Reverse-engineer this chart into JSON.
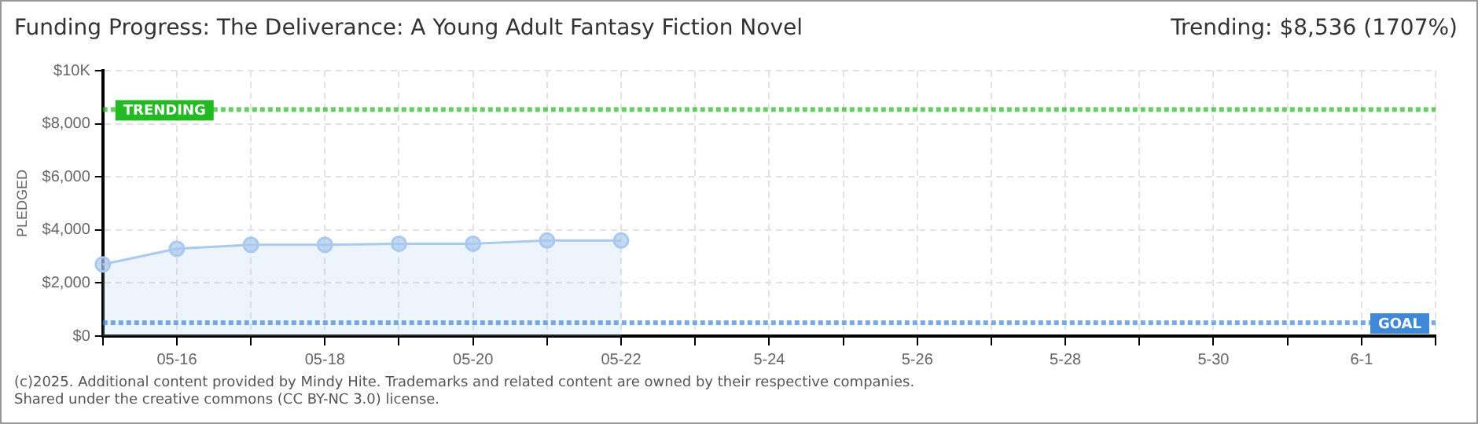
{
  "chart_data": {
    "type": "area",
    "title": "Funding Progress: The Deliverance: A Young Adult Fantasy Fiction Novel",
    "subtitle": "Trending:  $8,536 (1707%)",
    "ylabel": "PLEDGED",
    "categories": [
      null,
      "05-16",
      null,
      "05-18",
      null,
      "05-20",
      null,
      "05-22",
      null,
      "5-24",
      null,
      "5-26",
      null,
      "5-28",
      null,
      "5-30",
      null,
      "6-1",
      null
    ],
    "series": [
      {
        "color": "#a9c9ef",
        "values": [
          2700,
          3290,
          3440,
          3440,
          3480,
          3480,
          3600,
          3600,
          null,
          null,
          null,
          null,
          null,
          null,
          null,
          null,
          null,
          null,
          null
        ]
      }
    ],
    "ylim": [
      0,
      10000
    ],
    "yticks": [
      {
        "value": 0,
        "label": "$0"
      },
      {
        "value": 2000,
        "label": "$2,000"
      },
      {
        "value": 4000,
        "label": "$4,000"
      },
      {
        "value": 6000,
        "label": "$6,000"
      },
      {
        "value": 8000,
        "label": "$8,000"
      },
      {
        "value": 10000,
        "label": "$10K"
      }
    ],
    "ref_lines": [
      {
        "axis": "y",
        "value": 8536,
        "label": "TRENDING",
        "color": "#22b922",
        "line_style": "dotted"
      },
      {
        "axis": "y",
        "value": 500,
        "label": "GOAL",
        "color": "#3f88d8",
        "line_style": "dotted"
      }
    ],
    "grid": true,
    "legend": false,
    "marker": "circle",
    "annotations": [
      "(c)2025. Additional content provided by Mindy Hite. Trademarks and related content are owned by their respective companies.",
      "Shared under the creative commons (CC BY-NC 3.0) license."
    ]
  }
}
